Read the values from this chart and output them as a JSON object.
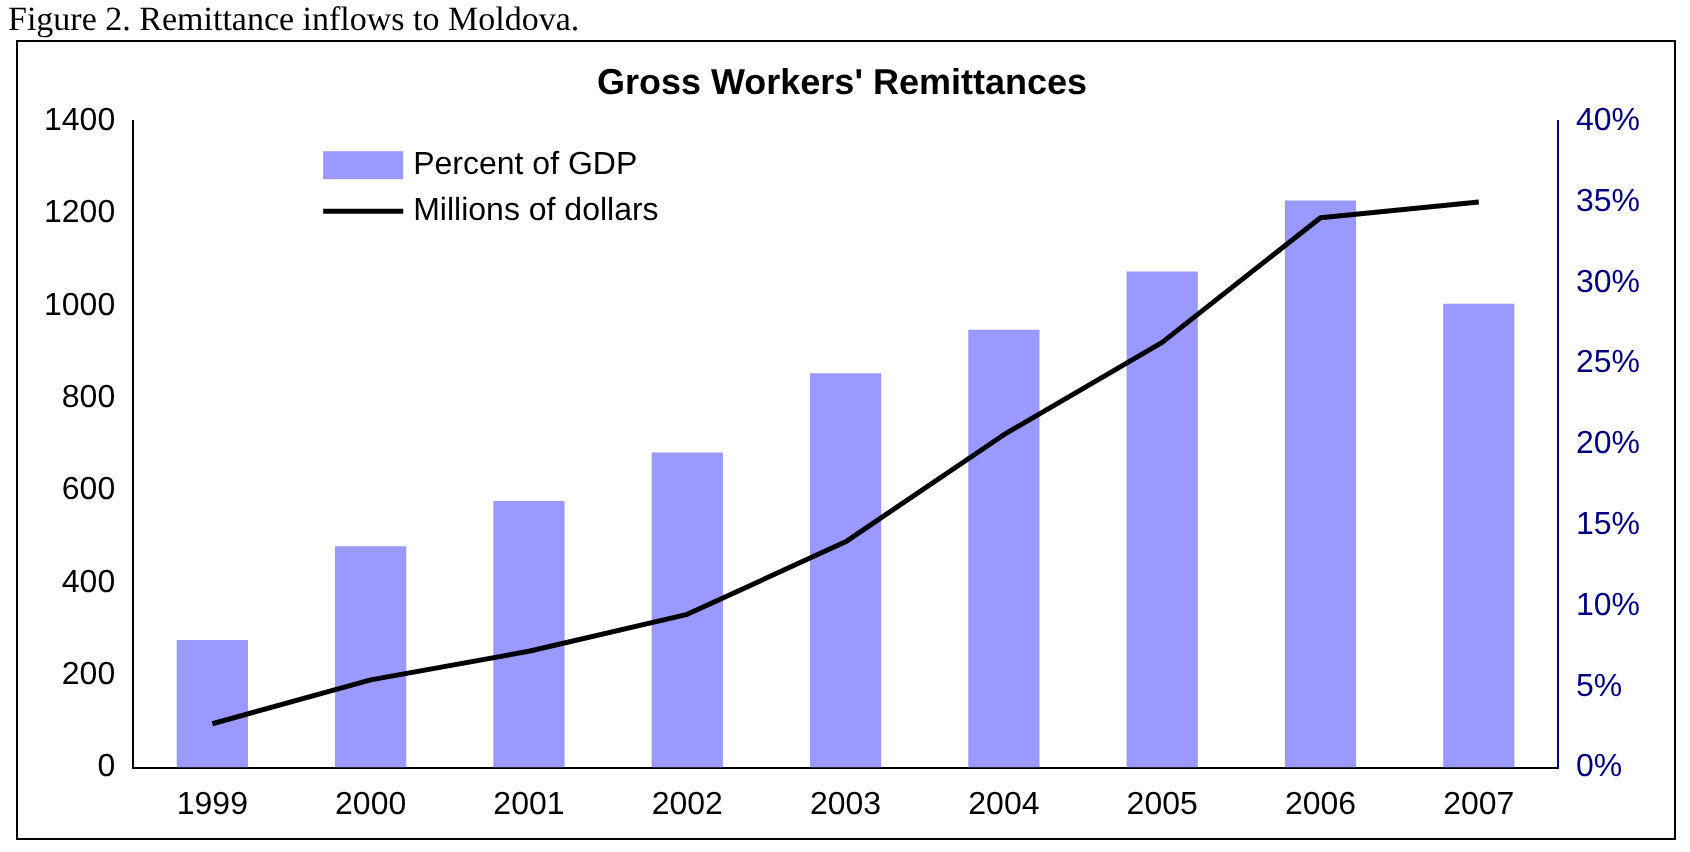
{
  "chart_data": {
    "type": "bar",
    "title": "Gross Workers' Remittances",
    "annotations": [
      "Figure 2. Remittance inflows to Moldova."
    ],
    "categories": [
      "1999",
      "2000",
      "2001",
      "2002",
      "2003",
      "2004",
      "2005",
      "2006",
      "2007"
    ],
    "series": [
      {
        "name": "Percent of GDP",
        "axis": "y2",
        "color": "#9999ff",
        "values": [
          7.9,
          13.7,
          16.5,
          19.5,
          24.4,
          27.1,
          30.7,
          35.1,
          28.7
        ]
      },
      {
        "name": "Millions of dollars",
        "type": "line",
        "color": "#000000",
        "marker": "none",
        "values": [
          95,
          190,
          252,
          332,
          489,
          721,
          921,
          1191,
          1225
        ]
      }
    ],
    "ylim": [
      0,
      1400
    ],
    "yticks": [
      0,
      200,
      400,
      600,
      800,
      1000,
      1200,
      1400
    ],
    "y2lim": [
      0,
      40
    ],
    "y2ticks": [
      {
        "value": 0,
        "label": "0%"
      },
      {
        "value": 5,
        "label": "5%"
      },
      {
        "value": 10,
        "label": "10%"
      },
      {
        "value": 15,
        "label": "15%"
      },
      {
        "value": 20,
        "label": "20%"
      },
      {
        "value": 25,
        "label": "25%"
      },
      {
        "value": 30,
        "label": "30%"
      },
      {
        "value": 35,
        "label": "35%"
      },
      {
        "value": 40,
        "label": "40%"
      }
    ],
    "grid": false,
    "legend": "top left"
  }
}
